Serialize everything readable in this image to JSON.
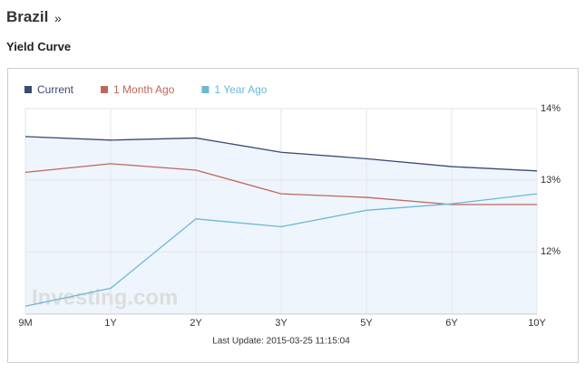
{
  "header": {
    "title": "Brazil",
    "link": "»",
    "subtitle": "Yield Curve"
  },
  "chart_data": {
    "type": "line",
    "categories": [
      "9M",
      "1Y",
      "2Y",
      "3Y",
      "5Y",
      "6Y",
      "10Y"
    ],
    "series": [
      {
        "name": "Current",
        "color": "#3b4a72",
        "values": [
          13.61,
          13.56,
          13.59,
          13.39,
          13.3,
          13.19,
          13.13
        ]
      },
      {
        "name": "1 Month Ago",
        "color": "#c0675b",
        "values": [
          13.11,
          13.23,
          13.14,
          12.81,
          12.76,
          12.66,
          12.66
        ]
      },
      {
        "name": "1 Year Ago",
        "color": "#6cb9d2",
        "values": [
          11.24,
          11.49,
          12.46,
          12.35,
          12.58,
          12.67,
          12.81
        ]
      }
    ],
    "ylim": [
      11.13,
      14
    ],
    "yticks": [
      {
        "value": 12,
        "label": "12%"
      },
      {
        "value": 13,
        "label": "13%"
      },
      {
        "value": 14,
        "label": "14%"
      }
    ],
    "grid": true,
    "watermark": "Investing.com",
    "note": "Last Update: 2015-03-25 11:15:04"
  }
}
